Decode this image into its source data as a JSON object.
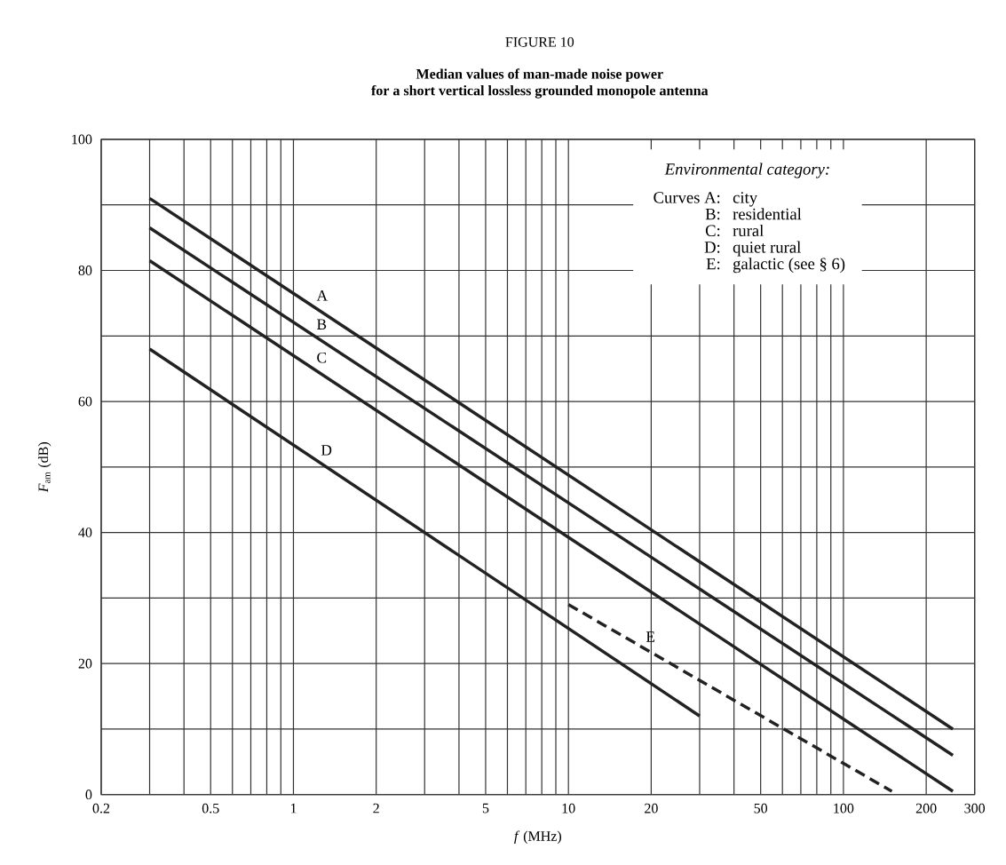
{
  "chart_data": {
    "type": "line",
    "title": "FIGURE 10",
    "subtitle": "Median values of man-made noise power\nfor a short vertical lossless grounded monopole antenna",
    "xlabel": "*f* (MHz)",
    "ylabel": "*F*$_{am}$ (dB)",
    "log": "x",
    "grid": true,
    "marker": "none",
    "xlim": [
      0.2,
      300
    ],
    "ylim": [
      0,
      100
    ],
    "xticks": [
      0.2,
      {
        "value": 0.3,
        "label": null
      },
      {
        "value": 0.4,
        "label": null
      },
      0.5,
      {
        "value": 0.6,
        "label": null
      },
      {
        "value": 0.7,
        "label": null
      },
      {
        "value": 0.8,
        "label": null
      },
      {
        "value": 0.9,
        "label": null
      },
      1,
      2,
      {
        "value": 3,
        "label": null
      },
      {
        "value": 4,
        "label": null
      },
      5,
      {
        "value": 6,
        "label": null
      },
      {
        "value": 7,
        "label": null
      },
      {
        "value": 8,
        "label": null
      },
      {
        "value": 9,
        "label": null
      },
      10,
      20,
      {
        "value": 30,
        "label": null
      },
      {
        "value": 40,
        "label": null
      },
      50,
      {
        "value": 60,
        "label": null
      },
      {
        "value": 70,
        "label": null
      },
      {
        "value": 80,
        "label": null
      },
      {
        "value": 90,
        "label": null
      },
      100,
      200,
      300
    ],
    "yticks": [
      0,
      {
        "value": 10,
        "label": null
      },
      20,
      {
        "value": 30,
        "label": null
      },
      40,
      {
        "value": 50,
        "label": null
      },
      60,
      {
        "value": 70,
        "label": null
      },
      80,
      {
        "value": 90,
        "label": null
      },
      100
    ],
    "series": [
      {
        "name": "A",
        "color": "#222222",
        "line_style": "solid",
        "x": [
          0.3,
          250
        ],
        "values": [
          91,
          10
        ]
      },
      {
        "name": "B",
        "color": "#222222",
        "line_style": "solid",
        "x": [
          0.3,
          250
        ],
        "values": [
          86.5,
          6
        ]
      },
      {
        "name": "C",
        "color": "#222222",
        "line_style": "solid",
        "x": [
          0.3,
          250
        ],
        "values": [
          81.5,
          0.5
        ]
      },
      {
        "name": "D",
        "color": "#222222",
        "line_style": "solid",
        "x": [
          0.3,
          30
        ],
        "values": [
          68,
          12
        ]
      },
      {
        "name": "E",
        "color": "#222222",
        "line_style": "dashed",
        "x": [
          10,
          150
        ],
        "values": [
          29,
          0.5
        ]
      }
    ],
    "annotations": [
      "Environmental category:",
      "Curves A:",
      "city",
      "B:",
      "residential",
      "C:",
      "rural",
      "D:",
      "quiet rural",
      "E:",
      "galactic (see § 6)"
    ]
  }
}
